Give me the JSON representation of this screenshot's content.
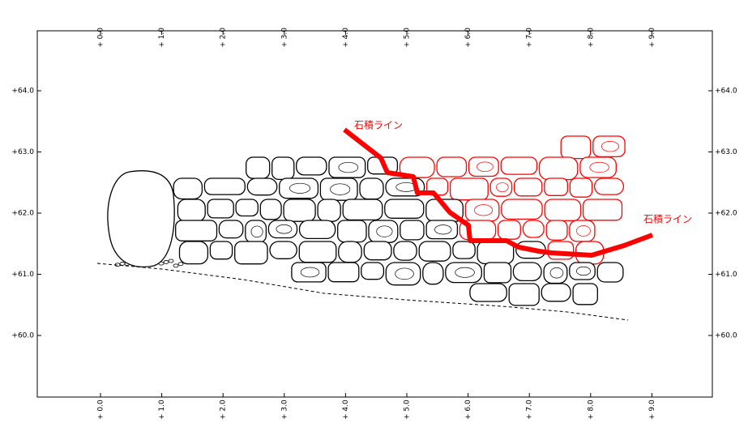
{
  "x_axis": {
    "ticks": [
      {
        "value": 0,
        "label": "+ 0.0"
      },
      {
        "value": 1,
        "label": "+ 1.0"
      },
      {
        "value": 2,
        "label": "+ 2.0"
      },
      {
        "value": 3,
        "label": "+ 3.0"
      },
      {
        "value": 4,
        "label": "+ 4.0"
      },
      {
        "value": 5,
        "label": "+ 5.0"
      },
      {
        "value": 6,
        "label": "+ 6.0"
      },
      {
        "value": 7,
        "label": "+ 7.0"
      },
      {
        "value": 8,
        "label": "+ 8.0"
      },
      {
        "value": 9,
        "label": "+ 9.0"
      }
    ]
  },
  "y_axis": {
    "ticks": [
      {
        "value": 64,
        "label": "+64.0"
      },
      {
        "value": 63,
        "label": "+63.0"
      },
      {
        "value": 62,
        "label": "+62.0"
      },
      {
        "value": 61,
        "label": "+61.0"
      },
      {
        "value": 60,
        "label": "+60.0"
      }
    ]
  },
  "annotations": [
    "石積ライン",
    "石積ライン"
  ]
}
